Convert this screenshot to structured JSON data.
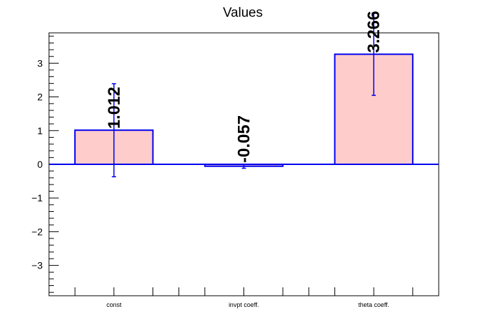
{
  "chart_data": {
    "type": "bar",
    "title": "Values",
    "xlabel": "",
    "ylabel": "",
    "categories": [
      "const",
      "invpt coeff.",
      "theta coeff."
    ],
    "values": [
      1.012,
      -0.057,
      3.266
    ],
    "value_labels": [
      "1.012",
      "-0.057",
      "3.266"
    ],
    "errors": [
      1.38,
      0.06,
      1.22
    ],
    "ylim": [
      -3.9,
      3.9
    ],
    "yticks": [
      -3,
      -2,
      -1,
      0,
      1,
      2,
      3
    ],
    "ytick_labels": [
      "−3",
      "−2",
      "−1",
      "0",
      "1",
      "2",
      "3"
    ],
    "grid": false,
    "legend": "none",
    "colors": {
      "bar_fill": "#ffcccc",
      "bar_stroke": "#0000ee",
      "zero_line": "#0000ee",
      "error_bar": "#0000ee",
      "axis": "#000000"
    }
  }
}
